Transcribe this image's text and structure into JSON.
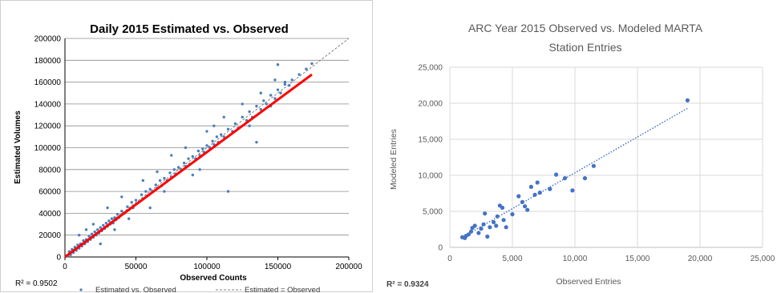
{
  "chart_data": [
    {
      "type": "scatter",
      "title": "Daily 2015 Estimated vs. Observed",
      "xlabel": "Observed Counts",
      "ylabel": "Estimated Volumes",
      "xlim": [
        0,
        200000
      ],
      "ylim": [
        0,
        200000
      ],
      "xticks": [
        "0",
        "50000",
        "100000",
        "150000",
        "200000"
      ],
      "yticks": [
        "0",
        "20000",
        "40000",
        "60000",
        "80000",
        "100000",
        "120000",
        "140000",
        "160000",
        "180000",
        "200000"
      ],
      "grid": true,
      "r_squared": "R² = 0.9502",
      "legend_position": "bottom",
      "colors": {
        "points": "#4a7ebb",
        "fit": "#ff0000",
        "identity": "#808080"
      },
      "series": [
        {
          "name": "Estimated vs. Observed",
          "points": [
            [
              2000,
              1000
            ],
            [
              3000,
              5000
            ],
            [
              4000,
              2000
            ],
            [
              5000,
              7000
            ],
            [
              6000,
              4000
            ],
            [
              7000,
              9000
            ],
            [
              8000,
              6000
            ],
            [
              9000,
              11000
            ],
            [
              10000,
              8000
            ],
            [
              11000,
              12000
            ],
            [
              12000,
              10000
            ],
            [
              13000,
              15000
            ],
            [
              14000,
              12000
            ],
            [
              15000,
              16000
            ],
            [
              16000,
              14000
            ],
            [
              17000,
              19000
            ],
            [
              18000,
              16000
            ],
            [
              19000,
              21000
            ],
            [
              20000,
              18000
            ],
            [
              21000,
              23000
            ],
            [
              22000,
              20000
            ],
            [
              23000,
              25000
            ],
            [
              24000,
              22000
            ],
            [
              25000,
              27000
            ],
            [
              26000,
              24000
            ],
            [
              27000,
              29000
            ],
            [
              28000,
              26000
            ],
            [
              29000,
              31000
            ],
            [
              30000,
              28000
            ],
            [
              31000,
              33000
            ],
            [
              32000,
              30000
            ],
            [
              33000,
              35000
            ],
            [
              34000,
              31000
            ],
            [
              35000,
              36000
            ],
            [
              36000,
              34000
            ],
            [
              37000,
              39000
            ],
            [
              38000,
              36000
            ],
            [
              40000,
              42000
            ],
            [
              42000,
              40000
            ],
            [
              44000,
              46000
            ],
            [
              45000,
              43000
            ],
            [
              47000,
              50000
            ],
            [
              48000,
              45000
            ],
            [
              50000,
              52000
            ],
            [
              52000,
              50000
            ],
            [
              54000,
              57000
            ],
            [
              55000,
              53000
            ],
            [
              57000,
              60000
            ],
            [
              58000,
              56000
            ],
            [
              60000,
              62000
            ],
            [
              62000,
              60000
            ],
            [
              64000,
              66000
            ],
            [
              65000,
              63000
            ],
            [
              67000,
              70000
            ],
            [
              68000,
              65000
            ],
            [
              70000,
              72000
            ],
            [
              72000,
              70000
            ],
            [
              74000,
              77000
            ],
            [
              75000,
              73000
            ],
            [
              77000,
              80000
            ],
            [
              78000,
              76000
            ],
            [
              80000,
              82000
            ],
            [
              82000,
              80000
            ],
            [
              84000,
              86000
            ],
            [
              85000,
              83000
            ],
            [
              87000,
              90000
            ],
            [
              88000,
              85000
            ],
            [
              90000,
              92000
            ],
            [
              92000,
              90000
            ],
            [
              94000,
              97000
            ],
            [
              95000,
              93000
            ],
            [
              97000,
              99000
            ],
            [
              98000,
              96000
            ],
            [
              100000,
              102000
            ],
            [
              102000,
              100000
            ],
            [
              104000,
              106000
            ],
            [
              105000,
              103000
            ],
            [
              107000,
              110000
            ],
            [
              108000,
              105000
            ],
            [
              110000,
              112000
            ],
            [
              112000,
              110000
            ],
            [
              115000,
              117000
            ],
            [
              118000,
              115000
            ],
            [
              120000,
              122000
            ],
            [
              122000,
              118000
            ],
            [
              125000,
              128000
            ],
            [
              128000,
              125000
            ],
            [
              130000,
              133000
            ],
            [
              132000,
              128000
            ],
            [
              135000,
              138000
            ],
            [
              138000,
              135000
            ],
            [
              140000,
              143000
            ],
            [
              142000,
              140000
            ],
            [
              145000,
              148000
            ],
            [
              148000,
              145000
            ],
            [
              150000,
              153000
            ],
            [
              152000,
              150000
            ],
            [
              155000,
              158000
            ],
            [
              158000,
              157000
            ],
            [
              160000,
              162000
            ],
            [
              165000,
              167000
            ],
            [
              170000,
              172000
            ],
            [
              174000,
              177000
            ],
            [
              150000,
              176000
            ],
            [
              115000,
              60000
            ],
            [
              75000,
              93000
            ],
            [
              130000,
              120000
            ],
            [
              135000,
              105000
            ],
            [
              145000,
              138000
            ],
            [
              60000,
              45000
            ],
            [
              40000,
              55000
            ],
            [
              90000,
              75000
            ],
            [
              100000,
              115000
            ],
            [
              85000,
              100000
            ],
            [
              55000,
              70000
            ],
            [
              155000,
              160000
            ],
            [
              148000,
              162000
            ],
            [
              30000,
              45000
            ],
            [
              20000,
              30000
            ],
            [
              25000,
              12000
            ],
            [
              15000,
              25000
            ],
            [
              10000,
              20000
            ],
            [
              35000,
              25000
            ],
            [
              45000,
              35000
            ],
            [
              65000,
              78000
            ],
            [
              70000,
              60000
            ],
            [
              95000,
              80000
            ],
            [
              105000,
              120000
            ],
            [
              112000,
              128000
            ],
            [
              125000,
              140000
            ],
            [
              138000,
              150000
            ]
          ]
        },
        {
          "name": "Estimated = Observed",
          "line": [
            [
              0,
              0
            ],
            [
              200000,
              200000
            ]
          ]
        }
      ],
      "fit_line": [
        [
          0,
          0
        ],
        [
          174000,
          167000
        ]
      ]
    },
    {
      "type": "scatter",
      "title": "ARC Year 2015 Observed vs. Modeled MARTA Station Entries",
      "title_lines": [
        "ARC Year 2015 Observed vs. Modeled MARTA",
        "Station Entries"
      ],
      "xlabel": "Observed Entries",
      "ylabel": "Modeled Entries",
      "xlim": [
        0,
        25000
      ],
      "ylim": [
        0,
        25000
      ],
      "xticks": [
        "0",
        "5,000",
        "10,000",
        "15,000",
        "20,000",
        "25,000"
      ],
      "yticks": [
        "0",
        "5,000",
        "10,000",
        "15,000",
        "20,000",
        "25,000"
      ],
      "grid": true,
      "r_squared": "R² = 0.9324",
      "colors": {
        "points": "#4472c4",
        "trend": "#4472c4"
      },
      "points": [
        [
          1000,
          1400
        ],
        [
          1200,
          1300
        ],
        [
          1300,
          1600
        ],
        [
          1500,
          1800
        ],
        [
          1700,
          2200
        ],
        [
          1800,
          2700
        ],
        [
          2000,
          3000
        ],
        [
          2300,
          2000
        ],
        [
          2500,
          2600
        ],
        [
          2700,
          3200
        ],
        [
          2800,
          4700
        ],
        [
          3000,
          1500
        ],
        [
          3200,
          2800
        ],
        [
          3500,
          3500
        ],
        [
          3700,
          3000
        ],
        [
          3800,
          4300
        ],
        [
          4000,
          5800
        ],
        [
          4200,
          5500
        ],
        [
          4300,
          3800
        ],
        [
          4500,
          2800
        ],
        [
          5000,
          4600
        ],
        [
          5500,
          7100
        ],
        [
          5800,
          6300
        ],
        [
          6000,
          5700
        ],
        [
          6200,
          5200
        ],
        [
          6500,
          8400
        ],
        [
          6800,
          7300
        ],
        [
          7000,
          9000
        ],
        [
          7200,
          7600
        ],
        [
          8000,
          8100
        ],
        [
          8500,
          10100
        ],
        [
          9200,
          9600
        ],
        [
          9800,
          7900
        ],
        [
          10800,
          9600
        ],
        [
          11500,
          11300
        ],
        [
          19000,
          20400
        ]
      ],
      "trend_line": [
        [
          1000,
          1400
        ],
        [
          19000,
          19300
        ]
      ]
    }
  ]
}
